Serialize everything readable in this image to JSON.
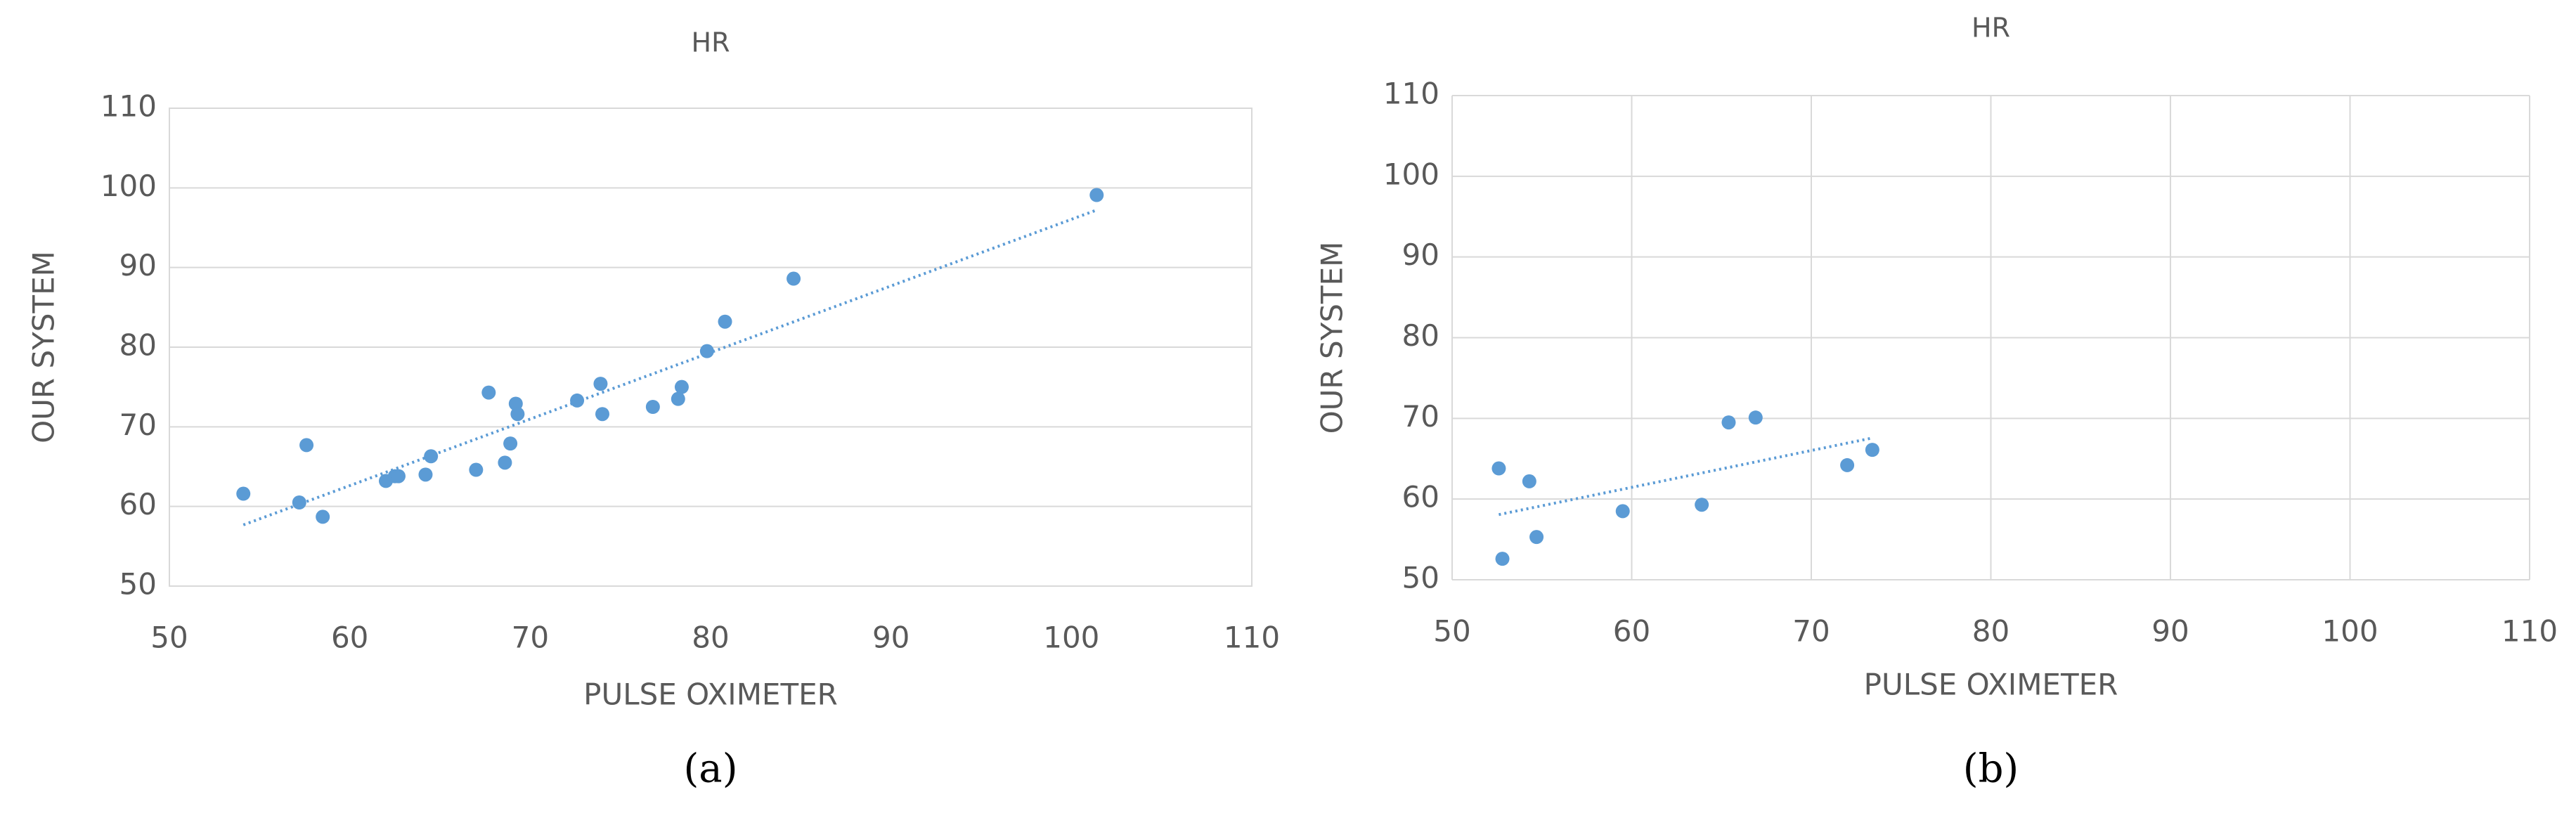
{
  "chart_data": [
    {
      "type": "scatter",
      "title": "HR",
      "xlabel": "PULSE OXIMETER",
      "ylabel": "OUR SYSTEM",
      "caption": "(a)",
      "x": [
        54.1,
        57.6,
        57.2,
        58.5,
        62.0,
        62.5,
        62.7,
        64.2,
        64.5,
        67.0,
        67.7,
        68.6,
        68.9,
        69.2,
        69.3,
        72.6,
        73.9,
        74.0,
        76.8,
        78.2,
        78.4,
        79.8,
        80.8,
        84.6,
        101.4
      ],
      "y": [
        61.6,
        67.7,
        60.5,
        58.7,
        63.2,
        63.8,
        63.8,
        64.0,
        66.3,
        64.6,
        74.3,
        65.5,
        67.9,
        72.9,
        71.6,
        73.3,
        75.4,
        71.6,
        72.5,
        73.5,
        75.0,
        79.5,
        83.2,
        88.6,
        99.1
      ],
      "color": "#5b9bd5",
      "xlim": [
        50,
        110
      ],
      "ylim": [
        50,
        110
      ],
      "xticks": [
        50,
        60,
        70,
        80,
        90,
        100,
        110
      ],
      "yticks": [
        50,
        60,
        70,
        80,
        90,
        100,
        110
      ],
      "grid": "y",
      "trendline": "linear"
    },
    {
      "type": "scatter",
      "title": "HR",
      "xlabel": "PULSE OXIMETER",
      "ylabel": "OUR SYSTEM",
      "caption": "(b)",
      "x": [
        52.6,
        52.8,
        54.3,
        54.7,
        59.5,
        63.9,
        65.4,
        66.9,
        72.0,
        73.4
      ],
      "y": [
        63.8,
        52.6,
        62.2,
        55.3,
        58.5,
        59.3,
        69.5,
        70.1,
        64.2,
        66.1
      ],
      "color": "#5b9bd5",
      "xlim": [
        50,
        110
      ],
      "ylim": [
        50,
        110
      ],
      "xticks": [
        50,
        60,
        70,
        80,
        90,
        100,
        110
      ],
      "yticks": [
        50,
        60,
        70,
        80,
        90,
        100,
        110
      ],
      "grid": "both",
      "trendline": "linear"
    }
  ]
}
